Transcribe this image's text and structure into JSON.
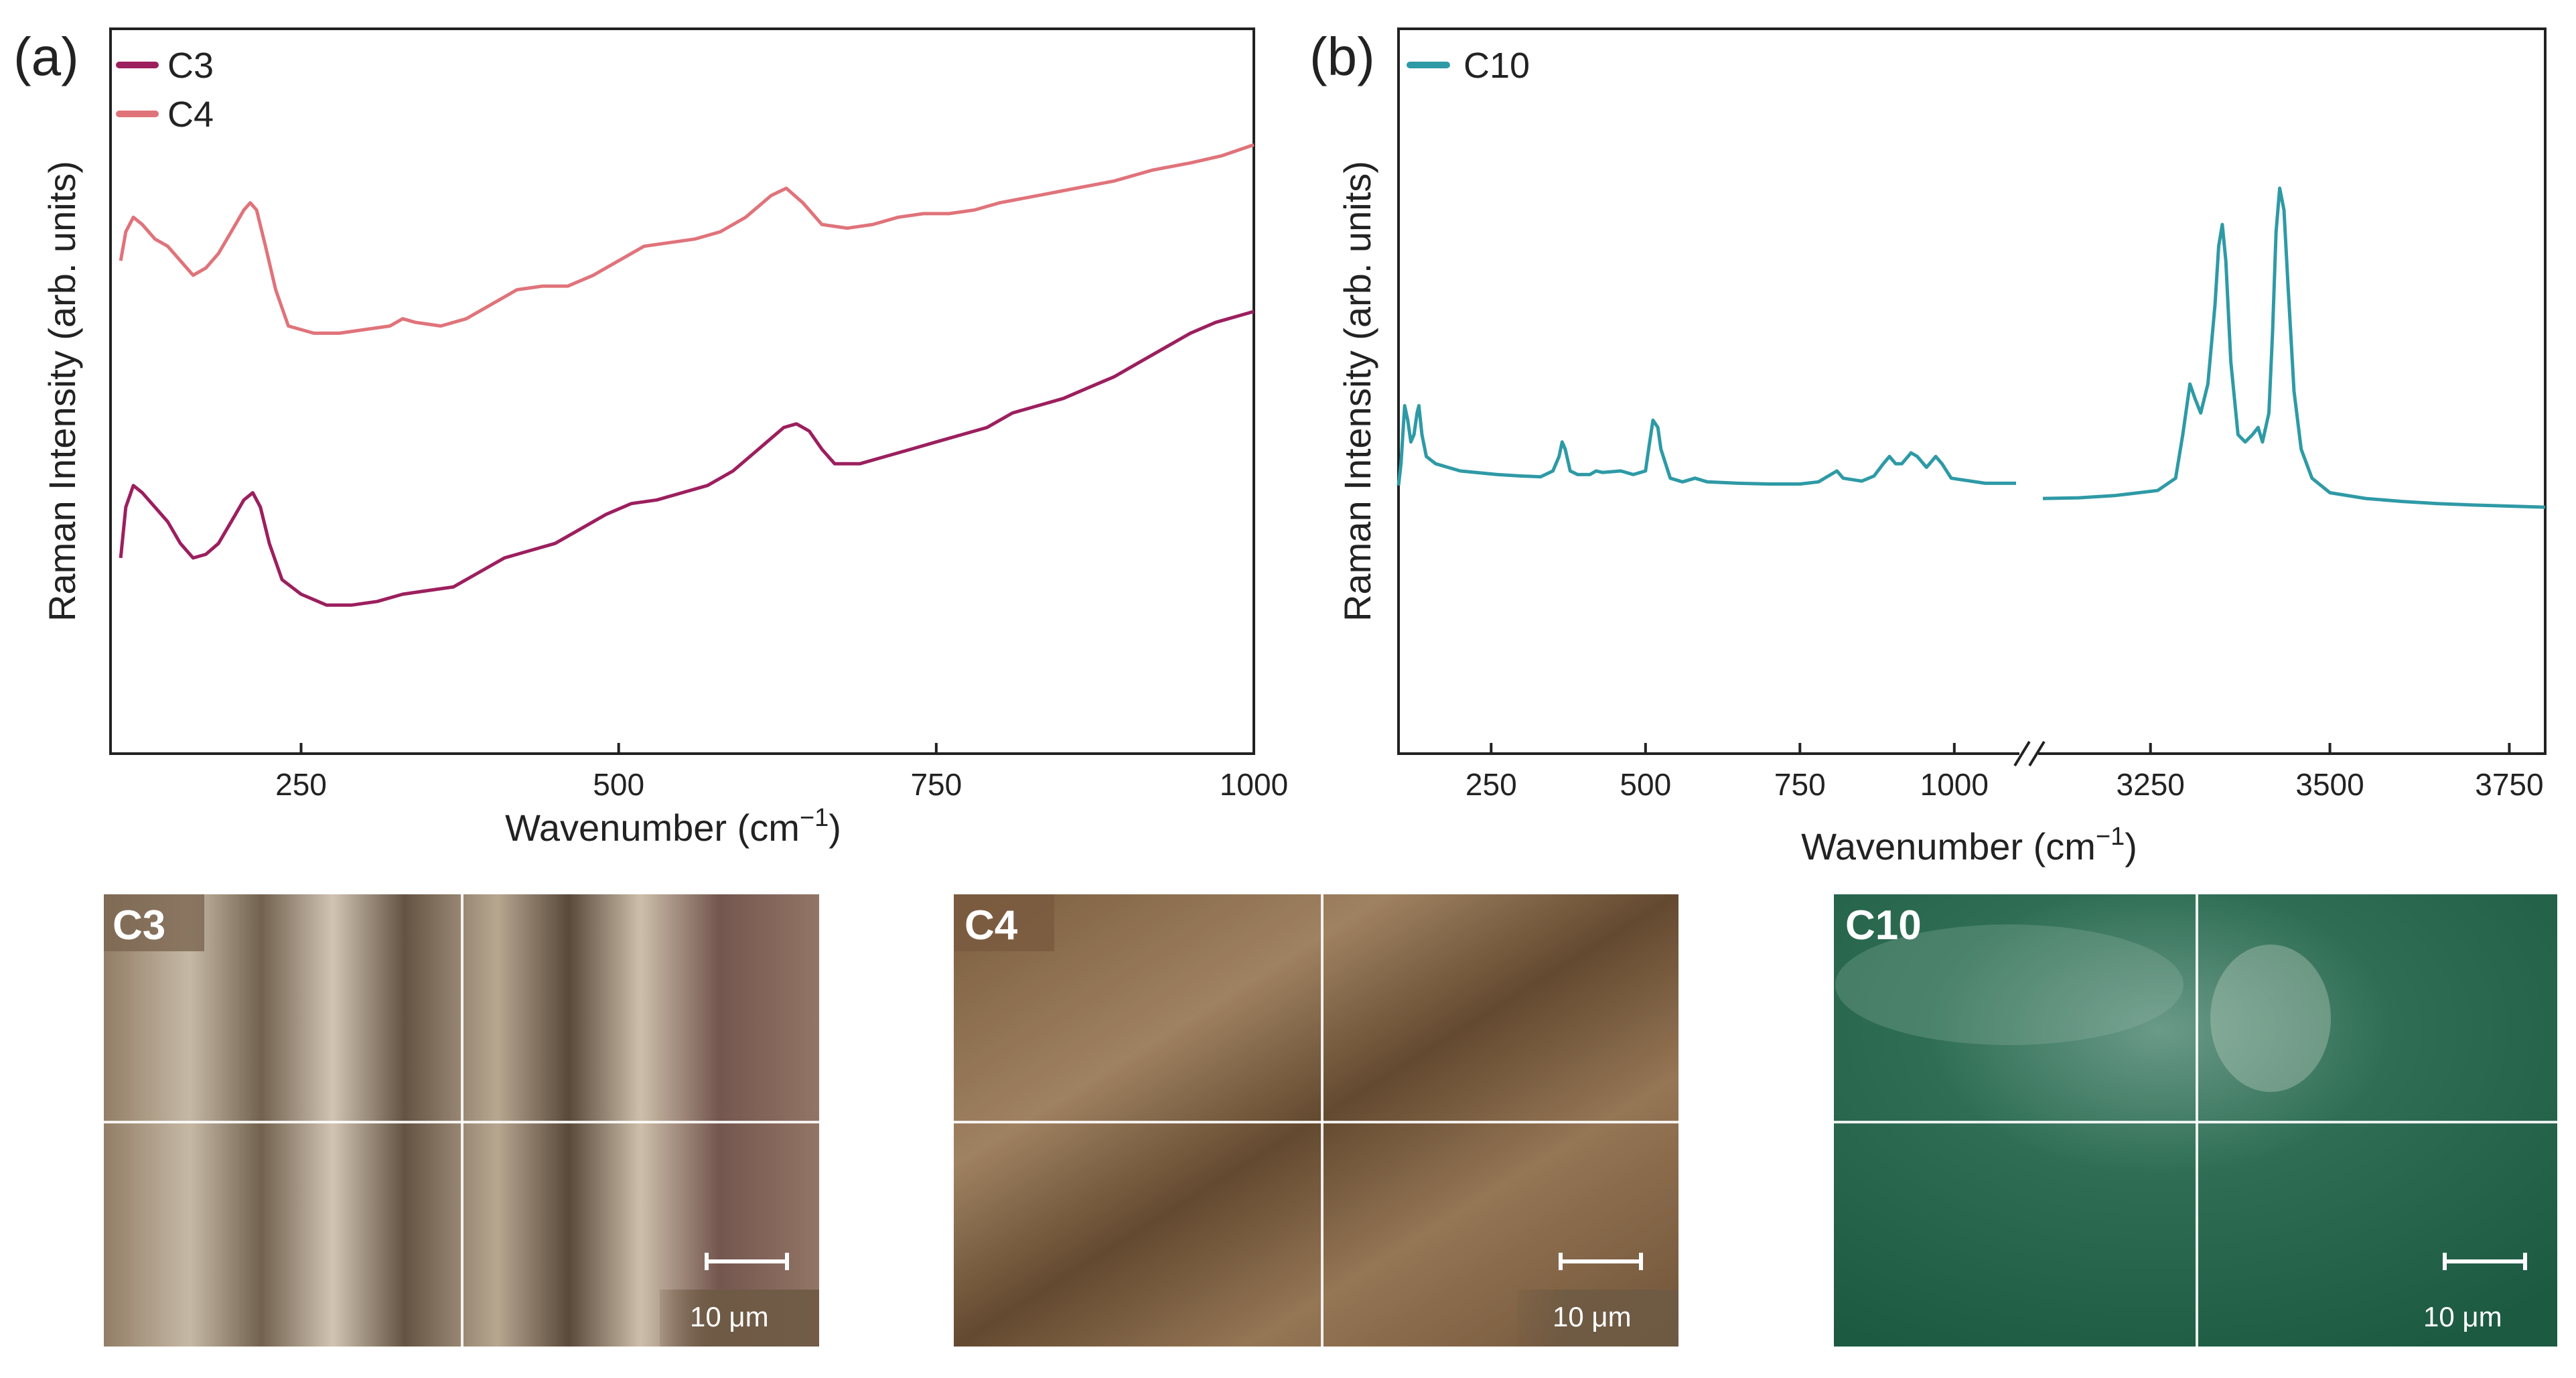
{
  "panels": {
    "a": {
      "label": "(a)",
      "ylabel": "Raman Intensity (arb. units)",
      "xlabel": "Wavenumber (cm",
      "xlabel_sup": "−1",
      "xlabel_end": ")",
      "legend": [
        {
          "name": "C3",
          "color": "#9c1f5e"
        },
        {
          "name": "C4",
          "color": "#e0737a"
        }
      ]
    },
    "b": {
      "label": "(b)",
      "ylabel": "Raman Intensity (arb. units)",
      "xlabel": "Wavenumber (cm",
      "xlabel_sup": "−1",
      "xlabel_end": ")",
      "legend": [
        {
          "name": "C10",
          "color": "#2e9aa6"
        }
      ]
    }
  },
  "micrographs": [
    {
      "label": "C3",
      "scale": "10 μm"
    },
    {
      "label": "C4",
      "scale": "10 μm"
    },
    {
      "label": "C10",
      "scale": "10 μm"
    }
  ],
  "chart_data": [
    {
      "type": "line",
      "panel": "a",
      "title": "",
      "xlabel": "Wavenumber (cm−1)",
      "ylabel": "Raman Intensity (arb. units)",
      "xlim": [
        100,
        1000
      ],
      "ylim": [
        0,
        100
      ],
      "xticks": [
        250,
        500,
        750,
        1000
      ],
      "y_ticks_visible": false,
      "series": [
        {
          "name": "C4",
          "color": "#e0737a",
          "points": [
            [
              108,
              68
            ],
            [
              112,
              72
            ],
            [
              118,
              74
            ],
            [
              125,
              73
            ],
            [
              135,
              71
            ],
            [
              145,
              70
            ],
            [
              155,
              68
            ],
            [
              165,
              66
            ],
            [
              175,
              67
            ],
            [
              185,
              69
            ],
            [
              195,
              72
            ],
            [
              205,
              75
            ],
            [
              210,
              76
            ],
            [
              215,
              75
            ],
            [
              222,
              70
            ],
            [
              230,
              64
            ],
            [
              240,
              59
            ],
            [
              260,
              58
            ],
            [
              280,
              58
            ],
            [
              300,
              58.5
            ],
            [
              320,
              59
            ],
            [
              330,
              60
            ],
            [
              340,
              59.5
            ],
            [
              360,
              59
            ],
            [
              380,
              60
            ],
            [
              400,
              62
            ],
            [
              420,
              64
            ],
            [
              440,
              64.5
            ],
            [
              460,
              64.5
            ],
            [
              480,
              66
            ],
            [
              500,
              68
            ],
            [
              520,
              70
            ],
            [
              540,
              70.5
            ],
            [
              560,
              71
            ],
            [
              580,
              72
            ],
            [
              600,
              74
            ],
            [
              620,
              77
            ],
            [
              632,
              78
            ],
            [
              645,
              76
            ],
            [
              660,
              73
            ],
            [
              680,
              72.5
            ],
            [
              700,
              73
            ],
            [
              720,
              74
            ],
            [
              740,
              74.5
            ],
            [
              760,
              74.5
            ],
            [
              780,
              75
            ],
            [
              800,
              76
            ],
            [
              830,
              77
            ],
            [
              860,
              78
            ],
            [
              890,
              79
            ],
            [
              920,
              80.5
            ],
            [
              950,
              81.5
            ],
            [
              975,
              82.5
            ],
            [
              1000,
              84
            ]
          ]
        },
        {
          "name": "C3",
          "color": "#9c1f5e",
          "points": [
            [
              108,
              27
            ],
            [
              112,
              34
            ],
            [
              118,
              37
            ],
            [
              125,
              36
            ],
            [
              135,
              34
            ],
            [
              145,
              32
            ],
            [
              155,
              29
            ],
            [
              165,
              27
            ],
            [
              175,
              27.5
            ],
            [
              185,
              29
            ],
            [
              195,
              32
            ],
            [
              205,
              35
            ],
            [
              212,
              36
            ],
            [
              218,
              34
            ],
            [
              225,
              29
            ],
            [
              235,
              24
            ],
            [
              250,
              22
            ],
            [
              270,
              20.5
            ],
            [
              290,
              20.5
            ],
            [
              310,
              21
            ],
            [
              330,
              22
            ],
            [
              350,
              22.5
            ],
            [
              370,
              23
            ],
            [
              390,
              25
            ],
            [
              410,
              27
            ],
            [
              430,
              28
            ],
            [
              450,
              29
            ],
            [
              470,
              31
            ],
            [
              490,
              33
            ],
            [
              510,
              34.5
            ],
            [
              530,
              35
            ],
            [
              550,
              36
            ],
            [
              570,
              37
            ],
            [
              590,
              39
            ],
            [
              610,
              42
            ],
            [
              630,
              45
            ],
            [
              640,
              45.5
            ],
            [
              650,
              44.5
            ],
            [
              660,
              42
            ],
            [
              670,
              40
            ],
            [
              690,
              40
            ],
            [
              710,
              41
            ],
            [
              730,
              42
            ],
            [
              750,
              43
            ],
            [
              770,
              44
            ],
            [
              790,
              45
            ],
            [
              810,
              47
            ],
            [
              830,
              48
            ],
            [
              850,
              49
            ],
            [
              870,
              50.5
            ],
            [
              890,
              52
            ],
            [
              910,
              54
            ],
            [
              930,
              56
            ],
            [
              950,
              58
            ],
            [
              970,
              59.5
            ],
            [
              1000,
              61
            ]
          ]
        }
      ]
    },
    {
      "type": "line",
      "panel": "b",
      "title": "",
      "xlabel": "Wavenumber (cm−1)",
      "ylabel": "Raman Intensity (arb. units)",
      "x_break": [
        1100,
        3100
      ],
      "xlim_left": [
        100,
        1100
      ],
      "xlim_right": [
        3100,
        3800
      ],
      "ylim": [
        0,
        100
      ],
      "xticks": [
        250,
        500,
        750,
        1000,
        3250,
        3500,
        3750
      ],
      "y_ticks_visible": false,
      "series": [
        {
          "name": "C10",
          "color": "#2e9aa6",
          "segments": [
            [
              [
                100,
                37
              ],
              [
                104,
                40
              ],
              [
                110,
                48
              ],
              [
                115,
                46
              ],
              [
                120,
                43
              ],
              [
                125,
                44
              ],
              [
                130,
                47
              ],
              [
                133,
                48
              ],
              [
                138,
                44
              ],
              [
                145,
                41
              ],
              [
                160,
                40
              ],
              [
                200,
                39
              ],
              [
                260,
                38.5
              ],
              [
                300,
                38.3
              ],
              [
                330,
                38.2
              ],
              [
                350,
                39
              ],
              [
                360,
                41
              ],
              [
                365,
                43
              ],
              [
                370,
                42
              ],
              [
                378,
                39
              ],
              [
                390,
                38.5
              ],
              [
                410,
                38.5
              ],
              [
                420,
                39
              ],
              [
                430,
                38.8
              ],
              [
                460,
                39
              ],
              [
                480,
                38.5
              ],
              [
                500,
                39
              ],
              [
                505,
                42
              ],
              [
                512,
                46
              ],
              [
                520,
                45
              ],
              [
                525,
                42
              ],
              [
                540,
                38
              ],
              [
                560,
                37.5
              ],
              [
                580,
                38
              ],
              [
                600,
                37.5
              ],
              [
                650,
                37.3
              ],
              [
                700,
                37.2
              ],
              [
                750,
                37.2
              ],
              [
                780,
                37.5
              ],
              [
                800,
                38.5
              ],
              [
                810,
                39
              ],
              [
                820,
                38
              ],
              [
                850,
                37.6
              ],
              [
                870,
                38.3
              ],
              [
                885,
                40
              ],
              [
                895,
                41
              ],
              [
                905,
                40
              ],
              [
                915,
                40
              ],
              [
                930,
                41.5
              ],
              [
                940,
                41
              ],
              [
                955,
                39.5
              ],
              [
                970,
                41
              ],
              [
                980,
                40
              ],
              [
                995,
                38
              ],
              [
                1050,
                37.3
              ],
              [
                1100,
                37.3
              ]
            ],
            [
              [
                3100,
                35.2
              ],
              [
                3150,
                35.3
              ],
              [
                3200,
                35.6
              ],
              [
                3260,
                36.3
              ],
              [
                3285,
                38
              ],
              [
                3295,
                44
              ],
              [
                3305,
                51
              ],
              [
                3312,
                49
              ],
              [
                3320,
                47
              ],
              [
                3330,
                51
              ],
              [
                3340,
                62
              ],
              [
                3345,
                70
              ],
              [
                3350,
                73
              ],
              [
                3355,
                68
              ],
              [
                3362,
                54
              ],
              [
                3372,
                44
              ],
              [
                3382,
                43
              ],
              [
                3392,
                44
              ],
              [
                3400,
                45
              ],
              [
                3406,
                43
              ],
              [
                3415,
                47
              ],
              [
                3420,
                58
              ],
              [
                3425,
                72
              ],
              [
                3430,
                78
              ],
              [
                3436,
                75
              ],
              [
                3442,
                64
              ],
              [
                3450,
                50
              ],
              [
                3460,
                42
              ],
              [
                3475,
                38
              ],
              [
                3500,
                36
              ],
              [
                3550,
                35.2
              ],
              [
                3600,
                34.8
              ],
              [
                3650,
                34.5
              ],
              [
                3700,
                34.3
              ],
              [
                3800,
                34
              ]
            ]
          ]
        }
      ]
    }
  ]
}
